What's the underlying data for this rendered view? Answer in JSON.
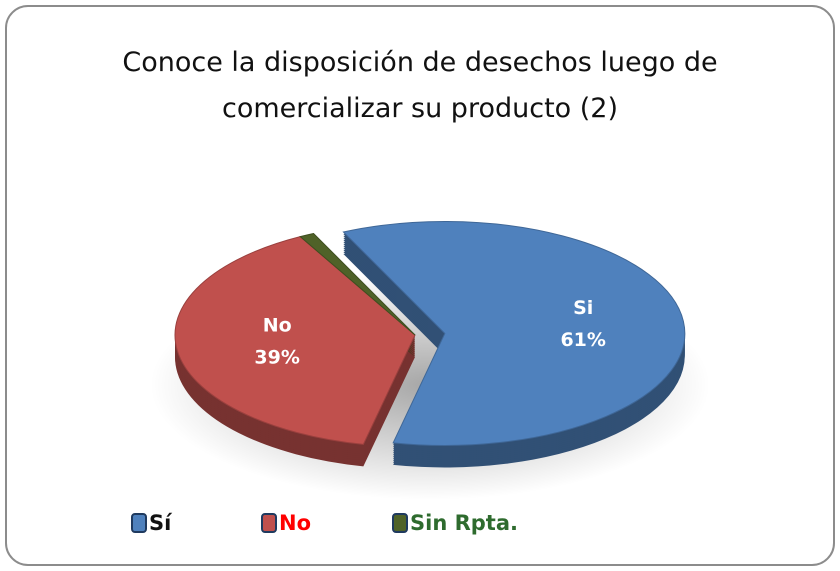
{
  "chart_data": {
    "type": "pie",
    "title": "Conoce la disposición de desechos luego de comercializar su producto (2)",
    "categories": [
      "Sí",
      "No",
      "Sin Rpta."
    ],
    "slice_names": [
      "Si",
      "No",
      null
    ],
    "values": [
      61,
      39,
      1
    ],
    "value_labels": [
      "61%",
      "39%",
      null
    ],
    "colors": [
      "#4f81bd",
      "#c0504d",
      "#4f6228"
    ],
    "legend_text_colors": [
      "#111111",
      "#ff0000",
      "#2e6b2e"
    ],
    "legend": "bottom"
  }
}
